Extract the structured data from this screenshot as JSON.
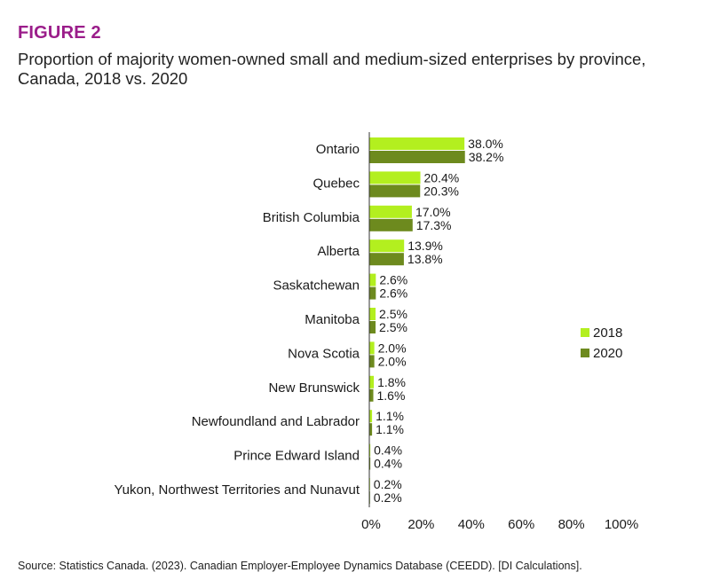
{
  "figure": {
    "label": "FIGURE 2",
    "title": "Proportion of majority women-owned small and medium-sized enterprises by province, Canada, 2018 vs. 2020",
    "source": "Source: Statistics Canada. (2023). Canadian Employer-Employee Dynamics Database (CEEDD). [DI Calculations]."
  },
  "colors": {
    "series_2018": "#b3ef1f",
    "series_2020": "#6d8a1e",
    "axis": "#333333",
    "label_purple": "#9b1d8a"
  },
  "chart_data": {
    "type": "bar",
    "orientation": "horizontal",
    "title": "Proportion of majority women-owned small and medium-sized enterprises by province, Canada, 2018 vs. 2020",
    "xlabel": "",
    "ylabel": "",
    "xlim": [
      0,
      100
    ],
    "xticks": [
      "0%",
      "20%",
      "40%",
      "60%",
      "80%",
      "100%"
    ],
    "grid": false,
    "legend_position": "right",
    "categories": [
      "Ontario",
      "Quebec",
      "British Columbia",
      "Alberta",
      "Saskatchewan",
      "Manitoba",
      "Nova Scotia",
      "New Brunswick",
      "Newfoundland and Labrador",
      "Prince Edward Island",
      "Yukon, Northwest Territories and Nunavut"
    ],
    "series": [
      {
        "name": "2018",
        "values": [
          38.0,
          20.4,
          17.0,
          13.9,
          2.6,
          2.5,
          2.0,
          1.8,
          1.1,
          0.4,
          0.2
        ],
        "labels": [
          "38.0%",
          "20.4%",
          "17.0%",
          "13.9%",
          "2.6%",
          "2.5%",
          "2.0%",
          "1.8%",
          "1.1%",
          "0.4%",
          "0.2%"
        ]
      },
      {
        "name": "2020",
        "values": [
          38.2,
          20.3,
          17.3,
          13.8,
          2.6,
          2.5,
          2.0,
          1.6,
          1.1,
          0.4,
          0.2
        ],
        "labels": [
          "38.2%",
          "20.3%",
          "17.3%",
          "13.8%",
          "2.6%",
          "2.5%",
          "2.0%",
          "1.6%",
          "1.1%",
          "0.4%",
          "0.2%"
        ]
      }
    ]
  }
}
